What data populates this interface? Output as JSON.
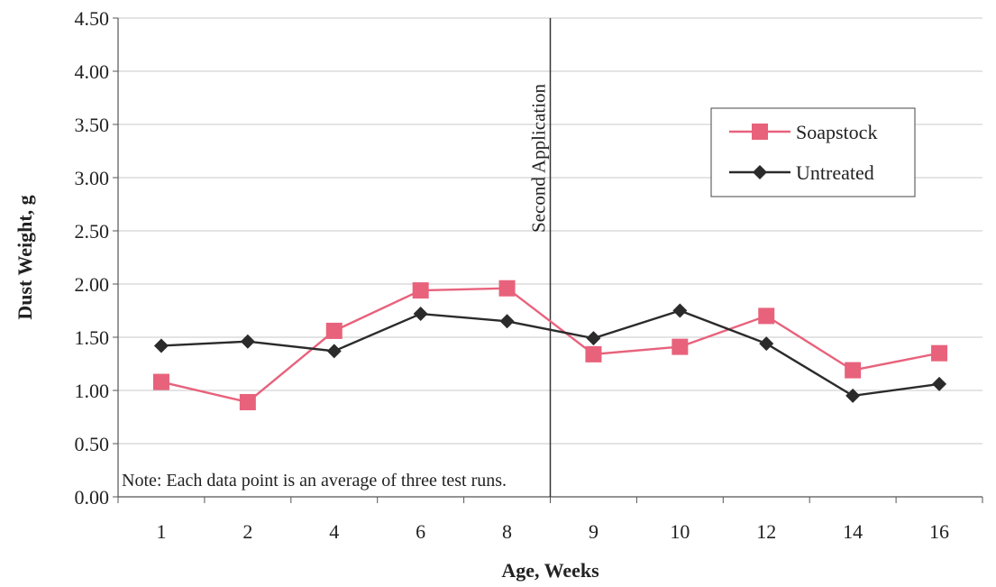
{
  "chart_data": {
    "type": "line",
    "title": "",
    "xlabel": "Age, Weeks",
    "ylabel": "Dust Weight, g",
    "categories": [
      "1",
      "2",
      "4",
      "6",
      "8",
      "9",
      "10",
      "12",
      "14",
      "16"
    ],
    "ylim": [
      0,
      4.5
    ],
    "yticks": [
      "0.00",
      "0.50",
      "1.00",
      "1.50",
      "2.00",
      "2.50",
      "3.00",
      "3.50",
      "4.00",
      "4.50"
    ],
    "grid": true,
    "legend_position": "top-right",
    "series": [
      {
        "name": "Soapstock",
        "color": "#e8627c",
        "marker": "square",
        "values": [
          1.08,
          0.89,
          1.56,
          1.94,
          1.96,
          1.34,
          1.41,
          1.7,
          1.19,
          1.35
        ]
      },
      {
        "name": "Untreated",
        "color": "#2b2b2b",
        "marker": "diamond",
        "values": [
          1.42,
          1.46,
          1.37,
          1.72,
          1.65,
          1.49,
          1.75,
          1.44,
          0.95,
          1.06
        ]
      }
    ],
    "annotations": {
      "vertical_line_label": "Second Application",
      "vertical_line_after_category": "8",
      "note": "Note: Each data point is an average of three test runs."
    }
  }
}
